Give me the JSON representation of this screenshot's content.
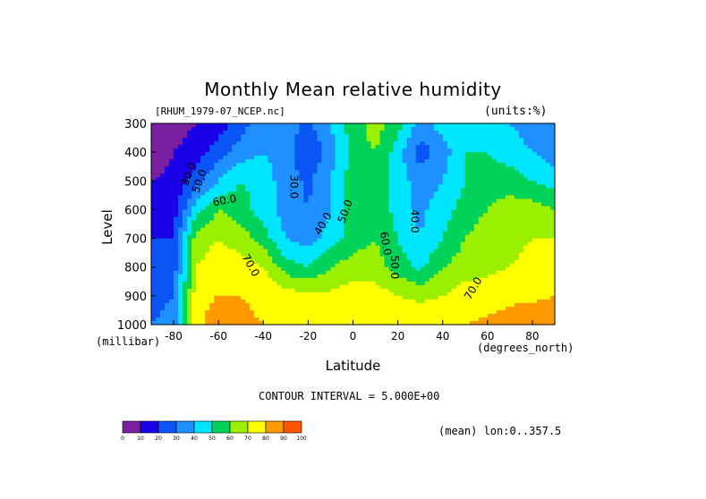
{
  "chart_data": {
    "type": "heatmap",
    "title": "Monthly Mean relative humidity",
    "source_label": "[RHUM_1979-07_NCEP.nc]",
    "units_label": "(units:%)",
    "ylabel": "Level",
    "yunit": "(millibar)",
    "xlabel": "Latitude",
    "xunit": "(degrees_north)",
    "xlim": [
      -90,
      90
    ],
    "ylim": [
      1000,
      300
    ],
    "xticks": [
      -80,
      -60,
      -40,
      -20,
      0,
      20,
      40,
      60,
      80
    ],
    "yticks": [
      300,
      400,
      500,
      600,
      700,
      800,
      900,
      1000
    ],
    "contour_interval": "CONTOUR INTERVAL = 5.000E+00",
    "mean_note": "(mean) lon:0..357.5",
    "colorbar": {
      "ticks": [
        0,
        10,
        20,
        30,
        40,
        50,
        60,
        70,
        80,
        90,
        100
      ],
      "colors": [
        "#7b1fa2",
        "#1a00e8",
        "#0a55f5",
        "#1e90ff",
        "#00e6ff",
        "#00d25a",
        "#9af000",
        "#ffff00",
        "#ff9900",
        "#ff5500",
        "#ff0000"
      ]
    },
    "lat": [
      -90,
      -80,
      -70,
      -60,
      -50,
      -40,
      -30,
      -20,
      -10,
      0,
      10,
      20,
      30,
      40,
      50,
      60,
      70,
      80,
      90
    ],
    "levels": [
      300,
      400,
      500,
      600,
      700,
      800,
      900,
      1000
    ],
    "values": [
      [
        5,
        5,
        10,
        15,
        25,
        40,
        35,
        28,
        40,
        55,
        65,
        55,
        35,
        45,
        50,
        45,
        40,
        35,
        30
      ],
      [
        5,
        10,
        15,
        25,
        35,
        40,
        35,
        20,
        35,
        55,
        60,
        45,
        25,
        35,
        50,
        50,
        45,
        40,
        35
      ],
      [
        10,
        12,
        25,
        40,
        50,
        45,
        35,
        28,
        40,
        55,
        60,
        45,
        35,
        40,
        50,
        55,
        55,
        50,
        45
      ],
      [
        15,
        15,
        45,
        60,
        55,
        45,
        35,
        30,
        40,
        55,
        60,
        45,
        38,
        45,
        55,
        60,
        65,
        65,
        60
      ],
      [
        20,
        20,
        65,
        70,
        65,
        55,
        40,
        35,
        45,
        55,
        60,
        50,
        40,
        50,
        60,
        65,
        68,
        70,
        70
      ],
      [
        20,
        25,
        70,
        75,
        75,
        70,
        55,
        50,
        60,
        65,
        65,
        55,
        48,
        60,
        65,
        68,
        70,
        72,
        72
      ],
      [
        25,
        30,
        75,
        80,
        80,
        78,
        75,
        72,
        72,
        75,
        75,
        70,
        68,
        70,
        75,
        75,
        78,
        78,
        80
      ],
      [
        30,
        35,
        75,
        90,
        82,
        80,
        80,
        78,
        78,
        80,
        80,
        78,
        76,
        78,
        80,
        82,
        84,
        86,
        88
      ]
    ],
    "contour_labels": [
      "30.0",
      "50.0",
      "60.0",
      "30.0",
      "40.0",
      "50.0",
      "40.0",
      "60.0",
      "50.0",
      "70.0",
      "70.0"
    ]
  }
}
